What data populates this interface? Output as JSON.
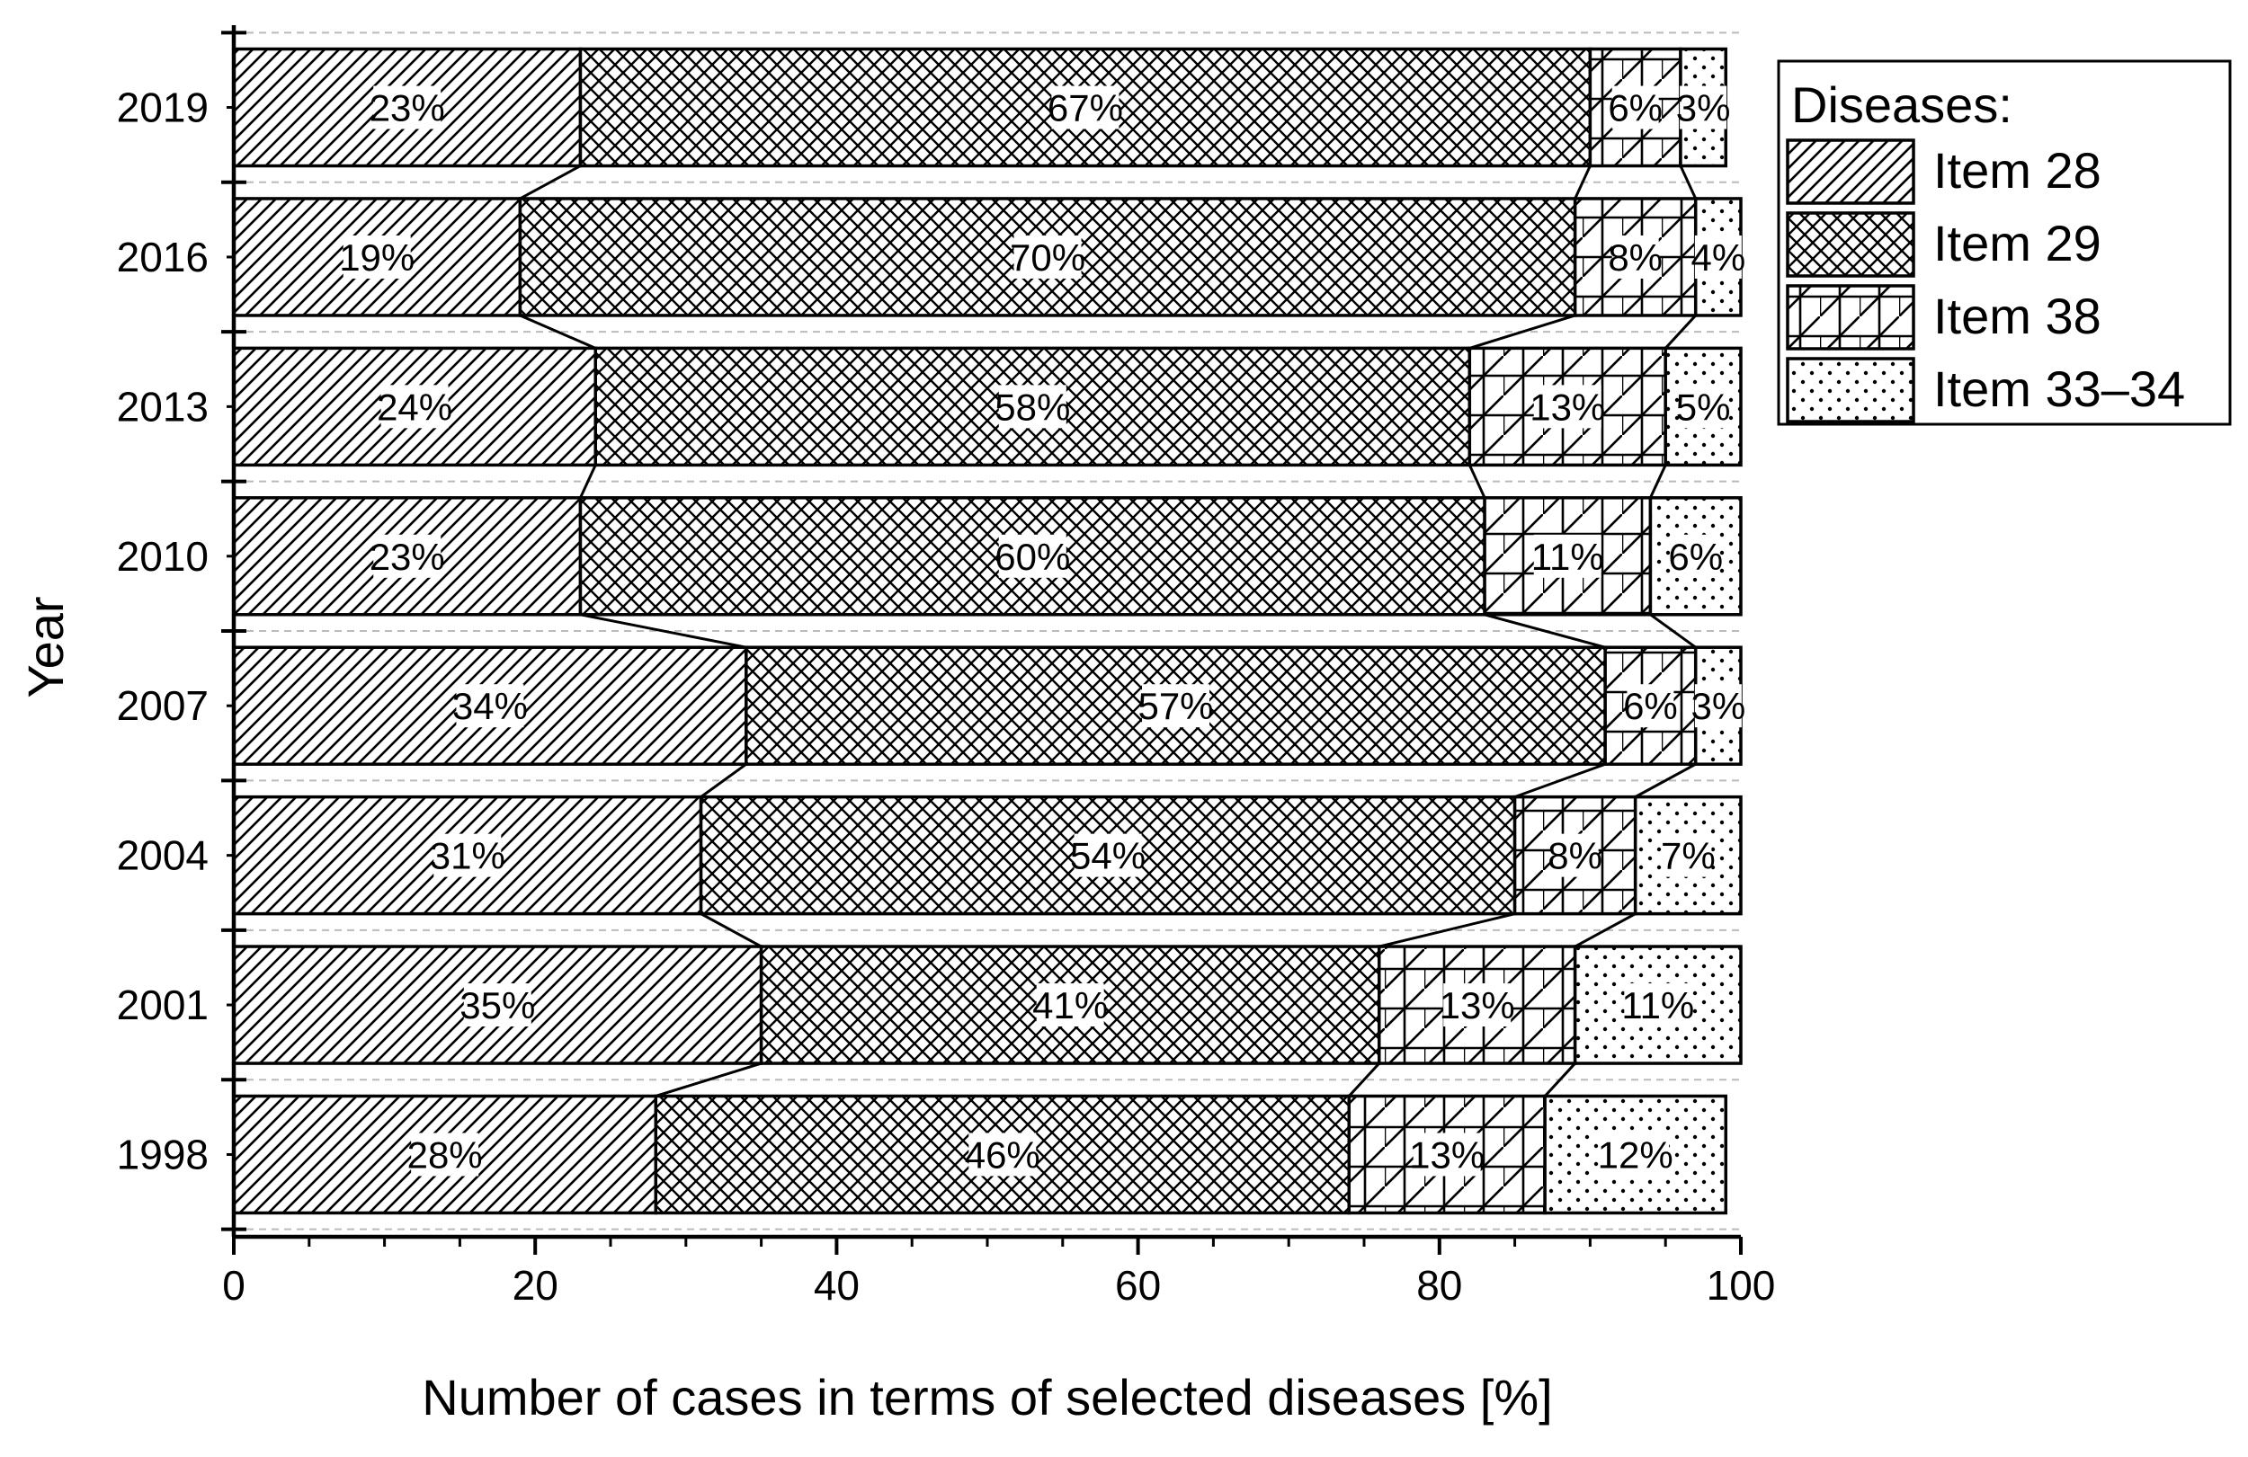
{
  "chart_data": {
    "type": "bar",
    "orientation": "horizontal",
    "stacked": true,
    "percent_stacked": true,
    "xlabel": "Number of cases in terms of selected diseases [%]",
    "ylabel": "Year",
    "xlim": [
      0,
      100
    ],
    "xticks": [
      "0",
      "20",
      "40",
      "60",
      "80",
      "100"
    ],
    "categories": [
      "2019",
      "2016",
      "2013",
      "2010",
      "2007",
      "2004",
      "2001",
      "1998"
    ],
    "series": [
      {
        "name": "Item 28",
        "pattern": "diagonal",
        "values": [
          23,
          19,
          24,
          23,
          34,
          31,
          35,
          28
        ],
        "labels": [
          "23%",
          "19%",
          "24%",
          "23%",
          "34%",
          "31%",
          "35%",
          "28%"
        ]
      },
      {
        "name": "Item 29",
        "pattern": "crosshatch",
        "values": [
          67,
          70,
          58,
          60,
          57,
          54,
          41,
          46
        ],
        "labels": [
          "67%",
          "70%",
          "58%",
          "60%",
          "57%",
          "54%",
          "41%",
          "46%"
        ]
      },
      {
        "name": "Item 38",
        "pattern": "zigzag",
        "values": [
          6,
          8,
          13,
          11,
          6,
          8,
          13,
          13
        ],
        "labels": [
          "6%",
          "8%",
          "13%",
          "11%",
          "6%",
          "8%",
          "13%",
          "13%"
        ]
      },
      {
        "name": "Item 33–34",
        "pattern": "dots",
        "values": [
          3,
          4,
          5,
          6,
          3,
          7,
          11,
          12
        ],
        "labels": [
          "3%",
          "4%",
          "5%",
          "6%",
          "3%",
          "7%",
          "11%",
          "12%"
        ]
      }
    ],
    "legend": {
      "title": "Diseases:",
      "position": "top-right-outside"
    },
    "grid": "horizontal-dashed"
  },
  "colors": {
    "stroke": "#000000",
    "background": "#ffffff",
    "grid": "#bbbbbb"
  }
}
